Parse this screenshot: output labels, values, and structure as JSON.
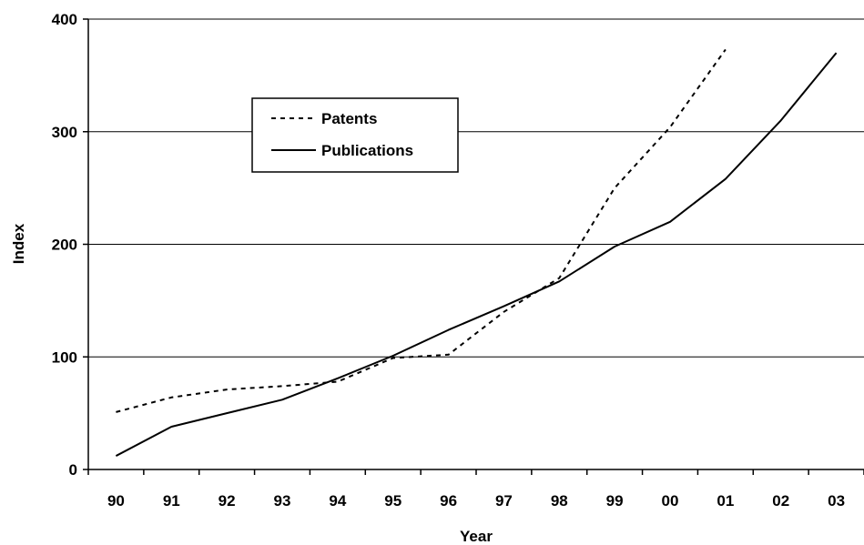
{
  "chart_data": {
    "type": "line",
    "title": "",
    "xlabel": "Year",
    "ylabel": "Index",
    "categories": [
      "90",
      "91",
      "92",
      "93",
      "94",
      "95",
      "96",
      "97",
      "98",
      "99",
      "00",
      "01",
      "02",
      "03"
    ],
    "ylim": [
      0,
      400
    ],
    "yticks": [
      "0",
      "100",
      "200",
      "300",
      "400"
    ],
    "grid": "horizontal",
    "legend_position": "top-left",
    "series": [
      {
        "name": "Patents",
        "style": "dashed",
        "color": "#000000",
        "values": [
          51,
          64,
          71,
          74,
          78,
          99,
          102,
          140,
          170,
          250,
          304,
          373,
          null,
          null
        ]
      },
      {
        "name": "Publications",
        "style": "solid",
        "color": "#000000",
        "values": [
          12,
          38,
          50,
          62,
          81,
          101,
          124,
          145,
          167,
          198,
          220,
          258,
          310,
          370
        ]
      }
    ]
  }
}
